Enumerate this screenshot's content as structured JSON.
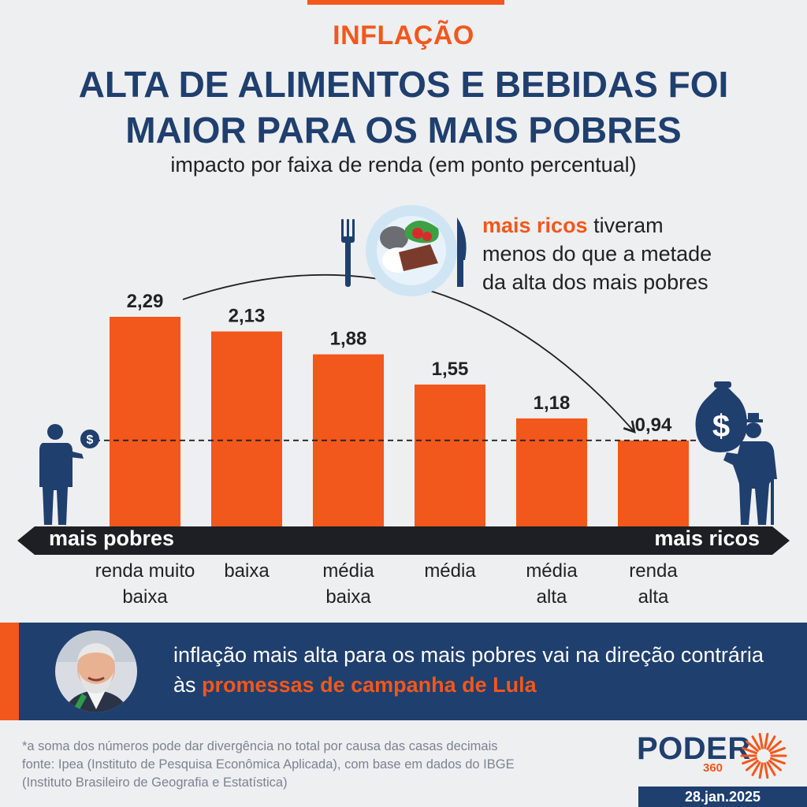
{
  "header": {
    "kicker": "INFLAÇÃO",
    "title_line1": "ALTA DE ALIMENTOS E BEBIDAS FOI",
    "title_line2": "MAIOR PARA OS MAIS POBRES",
    "subtitle": "impacto por faixa de renda (em ponto percentual)"
  },
  "callout": {
    "highlight": "mais ricos",
    "text_line1": " tiveram",
    "text_line2": "menos do que a metade",
    "text_line3": "da alta dos mais pobres"
  },
  "axis_labels": {
    "left": "mais pobres",
    "right": "mais ricos"
  },
  "category_labels": [
    [
      "renda muito",
      "baixa"
    ],
    [
      "baixa"
    ],
    [
      "média",
      "baixa"
    ],
    [
      "média"
    ],
    [
      "média",
      "alta"
    ],
    [
      "renda",
      "alta"
    ]
  ],
  "chart_data": {
    "type": "bar",
    "title": "ALTA DE ALIMENTOS E BEBIDAS FOI MAIOR PARA OS MAIS POBRES",
    "subtitle": "impacto por faixa de renda (em ponto percentual)",
    "categories": [
      "renda muito baixa",
      "baixa",
      "média baixa",
      "média",
      "média alta",
      "renda alta"
    ],
    "values": [
      2.29,
      2.13,
      1.88,
      1.55,
      1.18,
      0.94
    ],
    "value_labels": [
      "2,29",
      "2,13",
      "1,88",
      "1,55",
      "1,18",
      "0,94"
    ],
    "ylim": [
      0,
      2.29
    ],
    "bar_color": "#f2571b",
    "reference_line": 0.94,
    "grid": false
  },
  "banner": {
    "text": "inflação mais alta para os mais pobres vai na direção contrária às ",
    "highlight": "promessas de campanha de Lula"
  },
  "footer": {
    "note": "*a soma dos números pode dar divergência no total por causa das casas decimais",
    "source_line1": "fonte: Ipea (Instituto de Pesquisa Econômica Aplicada), com base em dados do IBGE",
    "source_line2": "(Instituto Brasileiro de Geografia e Estatística)",
    "date": "28.jan.2025"
  },
  "logo": {
    "word": "PODER",
    "sub": "360"
  },
  "colors": {
    "accent": "#f2571b",
    "navy": "#1f3f6e",
    "background": "#eeeff1"
  }
}
